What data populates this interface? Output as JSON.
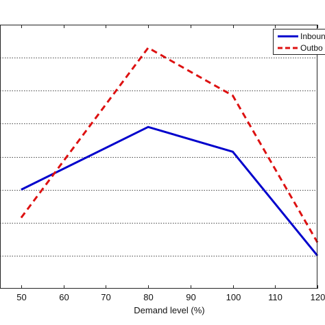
{
  "chart_data": {
    "type": "line",
    "title": "",
    "xlabel": "Demand level (%)",
    "ylabel": "",
    "x": [
      50,
      80,
      100,
      120
    ],
    "xticks": [
      50,
      60,
      70,
      80,
      90,
      100,
      110,
      120
    ],
    "xlim": [
      45,
      120
    ],
    "ylim": [
      0,
      8
    ],
    "grid": "horizontal-dotted",
    "legend_position": "top-right",
    "series": [
      {
        "name": "Inboun",
        "color": "#0000cc",
        "dash": "solid",
        "values": [
          3.0,
          4.9,
          4.15,
          1.0
        ]
      },
      {
        "name": "Outbo",
        "color": "#dd1111",
        "dash": "dashed",
        "values": [
          2.15,
          7.3,
          5.85,
          1.4
        ]
      }
    ]
  }
}
